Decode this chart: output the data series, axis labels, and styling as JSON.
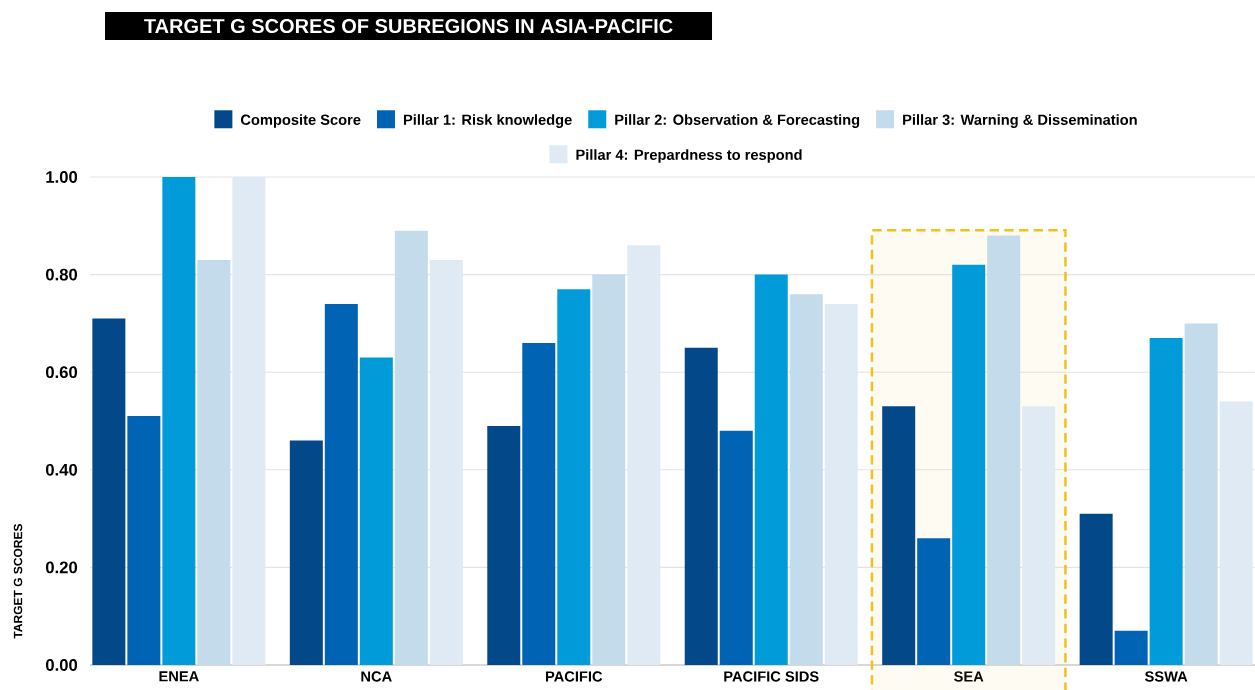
{
  "chart_data": {
    "type": "bar",
    "title": "TARGET G SCORES OF SUBREGIONS IN ASIA-PACIFIC",
    "ylabel": "TARGET G SCORES",
    "categories": [
      "ENEA",
      "NCA",
      "PACIFIC",
      "PACIFIC SIDS",
      "SEA",
      "SSWA"
    ],
    "series": [
      {
        "name": "Composite Score",
        "color": "#03498a",
        "values": [
          0.71,
          0.46,
          0.49,
          0.65,
          0.53,
          0.31
        ]
      },
      {
        "name": "Pillar 1: Risk knowledge",
        "color": "#0063b4",
        "values": [
          0.51,
          0.74,
          0.66,
          0.48,
          0.26,
          0.07
        ]
      },
      {
        "name": "Pillar 2: Observation & Forecasting",
        "color": "#009bd8",
        "values": [
          1.0,
          0.63,
          0.77,
          0.8,
          0.82,
          0.67
        ]
      },
      {
        "name": "Pillar 3: Warning & Dissemination",
        "color": "#c3dbeb",
        "values": [
          0.83,
          0.89,
          0.8,
          0.76,
          0.88,
          0.7
        ]
      },
      {
        "name": "Pillar 4: Prepardness to respond",
        "color": "#dfeaf4",
        "values": [
          1.0,
          0.83,
          0.86,
          0.74,
          0.53,
          0.54
        ]
      }
    ],
    "ylim": [
      0,
      1
    ],
    "yticks": [
      {
        "value": 0,
        "label": "0.00"
      },
      {
        "value": 0.2,
        "label": "0.20"
      },
      {
        "value": 0.4,
        "label": "0.40"
      },
      {
        "value": 0.6,
        "label": "0.60"
      },
      {
        "value": 0.8,
        "label": "0.80"
      },
      {
        "value": 1,
        "label": "1.00"
      }
    ],
    "grid": "y",
    "legend": "top",
    "bands": [
      {
        "axis": "x",
        "from": "SEA",
        "to": "SEA",
        "color": "#f4c01b"
      }
    ]
  }
}
